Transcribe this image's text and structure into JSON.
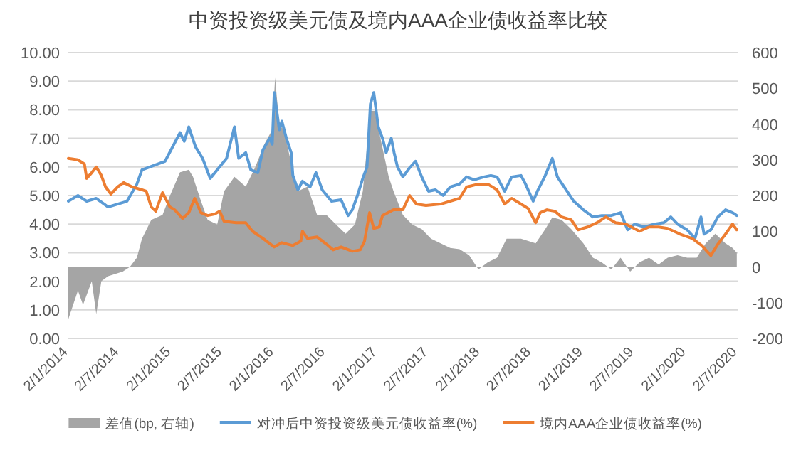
{
  "chart_data": {
    "type": "line",
    "title": "中资投资级美元债及境内AAA企业债收益率比较",
    "legend": "bottom",
    "grid": "y",
    "line_style": "solid",
    "marker": "none",
    "xlim": [
      "2014-01-02",
      "2020-07-02"
    ],
    "xticks": [
      {
        "value": "2014-01-02",
        "label": "2/1/2014"
      },
      {
        "value": "2014-07-02",
        "label": "2/7/2014"
      },
      {
        "value": "2015-01-02",
        "label": "2/1/2015"
      },
      {
        "value": "2015-07-02",
        "label": "2/7/2015"
      },
      {
        "value": "2016-01-02",
        "label": "2/1/2016"
      },
      {
        "value": "2016-07-02",
        "label": "2/7/2016"
      },
      {
        "value": "2017-01-02",
        "label": "2/1/2017"
      },
      {
        "value": "2017-07-02",
        "label": "2/7/2017"
      },
      {
        "value": "2018-01-02",
        "label": "2/1/2018"
      },
      {
        "value": "2018-07-02",
        "label": "2/7/2018"
      },
      {
        "value": "2019-01-02",
        "label": "2/1/2019"
      },
      {
        "value": "2019-07-02",
        "label": "2/7/2019"
      },
      {
        "value": "2020-01-02",
        "label": "2/1/2020"
      },
      {
        "value": "2020-07-02",
        "label": "2/7/2020"
      }
    ],
    "ylim": [
      0,
      10
    ],
    "yticks": [
      {
        "value": 0,
        "label": "0.00"
      },
      {
        "value": 1,
        "label": "1.00"
      },
      {
        "value": 2,
        "label": "2.00"
      },
      {
        "value": 3,
        "label": "3.00"
      },
      {
        "value": 4,
        "label": "4.00"
      },
      {
        "value": 5,
        "label": "5.00"
      },
      {
        "value": 6,
        "label": "6.00"
      },
      {
        "value": 7,
        "label": "7.00"
      },
      {
        "value": 8,
        "label": "8.00"
      },
      {
        "value": 9,
        "label": "9.00"
      },
      {
        "value": 10,
        "label": "10.00"
      }
    ],
    "y2lim": [
      -200,
      600
    ],
    "y2ticks": [
      -200,
      -100,
      0,
      100,
      200,
      300,
      400,
      500,
      600
    ],
    "series": [
      {
        "name": "差值(bp, 右轴)",
        "type": "area",
        "axis": "y2",
        "color": "#a5a5a5",
        "x": [
          "2014-01-02",
          "2014-02-05",
          "2014-02-23",
          "2014-03-26",
          "2014-04-11",
          "2014-04-29",
          "2014-05-23",
          "2014-07-14",
          "2014-08-08",
          "2014-09-02",
          "2014-09-20",
          "2014-10-23",
          "2014-12-02",
          "2014-12-28",
          "2015-02-02",
          "2015-03-05",
          "2015-03-20",
          "2015-04-17",
          "2015-05-11",
          "2015-06-14",
          "2015-07-08",
          "2015-08-14",
          "2015-09-23",
          "2015-10-26",
          "2015-11-28",
          "2015-12-26",
          "2016-01-05",
          "2016-01-20",
          "2016-02-05",
          "2016-03-02",
          "2016-03-26",
          "2016-04-29",
          "2016-06-02",
          "2016-07-05",
          "2016-08-08",
          "2016-09-11",
          "2016-10-14",
          "2016-11-11",
          "2016-12-08",
          "2016-12-23",
          "2017-01-17",
          "2017-02-11",
          "2017-02-28",
          "2017-04-02",
          "2017-05-05",
          "2017-06-08",
          "2017-07-11",
          "2017-08-14",
          "2017-09-17",
          "2017-10-20",
          "2017-11-23",
          "2017-12-26",
          "2018-01-28",
          "2018-03-02",
          "2018-04-05",
          "2018-05-26",
          "2018-07-17",
          "2018-08-20",
          "2018-09-14",
          "2018-10-17",
          "2018-11-20",
          "2019-01-02",
          "2019-02-05",
          "2019-03-08",
          "2019-04-11",
          "2019-05-14",
          "2019-06-17",
          "2019-07-20",
          "2019-08-23",
          "2019-09-26",
          "2019-10-28",
          "2019-12-02",
          "2020-01-05",
          "2020-02-08",
          "2020-03-11",
          "2020-04-14",
          "2020-05-20",
          "2020-06-14",
          "2020-06-29"
        ],
        "values": [
          -146,
          -66,
          -106,
          -40,
          -132,
          -40,
          -26,
          -13,
          0,
          26,
          79,
          132,
          146,
          199,
          265,
          272,
          252,
          185,
          132,
          119,
          212,
          252,
          225,
          278,
          344,
          384,
          530,
          397,
          384,
          291,
          212,
          225,
          146,
          146,
          119,
          93,
          119,
          212,
          437,
          437,
          344,
          252,
          212,
          146,
          119,
          106,
          79,
          66,
          53,
          50,
          33,
          -7,
          13,
          26,
          79,
          79,
          66,
          106,
          139,
          132,
          106,
          66,
          26,
          13,
          -7,
          26,
          -13,
          13,
          26,
          7,
          26,
          33,
          26,
          26,
          66,
          93,
          66,
          53,
          40
        ]
      },
      {
        "name": "对冲后中资投资级美元债收益率(%)",
        "type": "line",
        "color": "#5b9bd5",
        "x": [
          "2014-01-02",
          "2014-02-05",
          "2014-03-08",
          "2014-04-11",
          "2014-05-23",
          "2014-07-29",
          "2014-09-02",
          "2014-09-20",
          "2014-12-11",
          "2015-02-02",
          "2015-02-17",
          "2015-03-05",
          "2015-03-29",
          "2015-04-23",
          "2015-05-20",
          "2015-06-14",
          "2015-07-17",
          "2015-08-14",
          "2015-08-29",
          "2015-09-23",
          "2015-10-11",
          "2015-11-05",
          "2015-11-23",
          "2015-12-17",
          "2015-12-26",
          "2016-01-02",
          "2016-01-20",
          "2016-01-29",
          "2016-02-14",
          "2016-03-02",
          "2016-03-08",
          "2016-03-26",
          "2016-04-11",
          "2016-05-08",
          "2016-05-29",
          "2016-06-20",
          "2016-07-23",
          "2016-08-26",
          "2016-09-20",
          "2016-10-05",
          "2016-10-23",
          "2016-11-11",
          "2016-11-26",
          "2016-12-08",
          "2016-12-20",
          "2017-01-05",
          "2017-01-20",
          "2017-02-02",
          "2017-02-20",
          "2017-03-02",
          "2017-03-14",
          "2017-04-02",
          "2017-04-26",
          "2017-05-17",
          "2017-06-08",
          "2017-07-02",
          "2017-07-26",
          "2017-08-23",
          "2017-09-17",
          "2017-10-20",
          "2017-11-14",
          "2017-12-11",
          "2018-01-14",
          "2018-02-08",
          "2018-03-02",
          "2018-03-29",
          "2018-04-23",
          "2018-05-26",
          "2018-06-11",
          "2018-07-08",
          "2018-07-23",
          "2018-08-20",
          "2018-09-14",
          "2018-10-02",
          "2018-10-26",
          "2018-11-29",
          "2019-01-02",
          "2019-02-05",
          "2019-03-08",
          "2019-04-11",
          "2019-05-14",
          "2019-06-08",
          "2019-07-03",
          "2019-08-08",
          "2019-09-11",
          "2019-10-14",
          "2019-11-08",
          "2019-12-02",
          "2020-01-05",
          "2020-02-02",
          "2020-02-23",
          "2020-03-05",
          "2020-03-29",
          "2020-04-23",
          "2020-05-20",
          "2020-06-14",
          "2020-06-29"
        ],
        "values": [
          4.8,
          5.0,
          4.8,
          4.9,
          4.6,
          4.8,
          5.4,
          5.9,
          6.2,
          7.2,
          6.9,
          7.4,
          6.7,
          6.3,
          5.6,
          5.9,
          6.3,
          7.4,
          6.3,
          6.5,
          5.9,
          5.8,
          6.6,
          7.0,
          6.8,
          8.6,
          7.3,
          7.6,
          7.0,
          6.5,
          5.7,
          5.2,
          5.5,
          5.3,
          5.8,
          5.2,
          4.8,
          4.85,
          4.3,
          4.5,
          5.0,
          5.6,
          6.0,
          8.2,
          8.6,
          7.4,
          7.0,
          6.5,
          7.0,
          6.5,
          6.0,
          5.65,
          5.97,
          6.2,
          5.65,
          5.15,
          5.2,
          5.0,
          5.3,
          5.4,
          5.65,
          5.55,
          5.65,
          5.7,
          5.65,
          5.15,
          5.65,
          5.7,
          5.4,
          4.8,
          5.15,
          5.7,
          6.3,
          5.65,
          5.3,
          4.8,
          4.5,
          4.25,
          4.3,
          4.3,
          4.4,
          3.8,
          4.0,
          3.9,
          4.0,
          4.05,
          4.25,
          4.0,
          3.8,
          3.5,
          4.25,
          3.65,
          3.8,
          4.25,
          4.5,
          4.4,
          4.3
        ]
      },
      {
        "name": "境内AAA企业债收益率(%)",
        "type": "line",
        "color": "#ed7d31",
        "x": [
          "2014-01-02",
          "2014-02-05",
          "2014-02-28",
          "2014-03-08",
          "2014-03-26",
          "2014-04-11",
          "2014-04-29",
          "2014-05-14",
          "2014-06-02",
          "2014-06-26",
          "2014-07-17",
          "2014-08-17",
          "2014-09-20",
          "2014-10-05",
          "2014-10-23",
          "2014-11-08",
          "2014-12-02",
          "2014-12-28",
          "2015-01-14",
          "2015-02-11",
          "2015-03-05",
          "2015-03-26",
          "2015-04-17",
          "2015-05-11",
          "2015-06-05",
          "2015-06-23",
          "2015-07-08",
          "2015-08-20",
          "2015-09-23",
          "2015-10-17",
          "2015-11-23",
          "2016-01-02",
          "2016-01-29",
          "2016-03-08",
          "2016-04-05",
          "2016-04-11",
          "2016-04-29",
          "2016-06-02",
          "2016-07-05",
          "2016-07-29",
          "2016-08-26",
          "2016-10-05",
          "2016-11-02",
          "2016-11-17",
          "2016-12-05",
          "2016-12-20",
          "2017-01-08",
          "2017-01-20",
          "2017-02-28",
          "2017-04-02",
          "2017-04-26",
          "2017-05-20",
          "2017-06-23",
          "2017-08-14",
          "2017-09-17",
          "2017-10-20",
          "2017-11-14",
          "2017-12-26",
          "2018-01-28",
          "2018-03-02",
          "2018-03-29",
          "2018-04-23",
          "2018-05-26",
          "2018-06-20",
          "2018-07-17",
          "2018-08-02",
          "2018-08-26",
          "2018-09-23",
          "2018-10-17",
          "2018-11-20",
          "2018-12-14",
          "2019-01-17",
          "2019-02-20",
          "2019-03-23",
          "2019-04-26",
          "2019-06-02",
          "2019-07-20",
          "2019-08-23",
          "2019-09-26",
          "2019-10-28",
          "2019-12-11",
          "2020-01-23",
          "2020-02-26",
          "2020-03-29",
          "2020-04-23",
          "2020-05-20",
          "2020-06-14",
          "2020-06-29"
        ],
        "values": [
          6.3,
          6.25,
          6.1,
          5.6,
          5.8,
          6.0,
          5.7,
          5.3,
          5.05,
          5.3,
          5.45,
          5.3,
          5.2,
          5.15,
          4.6,
          4.45,
          5.1,
          4.6,
          4.5,
          4.2,
          4.4,
          4.9,
          4.4,
          4.3,
          4.35,
          4.45,
          4.1,
          4.05,
          4.05,
          3.75,
          3.5,
          3.2,
          3.35,
          3.25,
          3.4,
          3.75,
          3.5,
          3.55,
          3.3,
          3.1,
          3.2,
          3.05,
          3.1,
          3.4,
          4.4,
          3.85,
          3.9,
          4.3,
          4.5,
          4.5,
          5.0,
          4.7,
          4.65,
          4.7,
          4.8,
          4.9,
          5.3,
          5.4,
          5.4,
          5.2,
          4.7,
          4.9,
          4.7,
          4.55,
          4.05,
          4.4,
          4.5,
          4.45,
          4.25,
          4.15,
          3.8,
          3.9,
          4.05,
          4.25,
          4.05,
          4.0,
          3.75,
          3.9,
          3.9,
          3.85,
          3.65,
          3.5,
          3.25,
          2.9,
          3.3,
          3.65,
          4.0,
          3.8
        ]
      }
    ]
  }
}
